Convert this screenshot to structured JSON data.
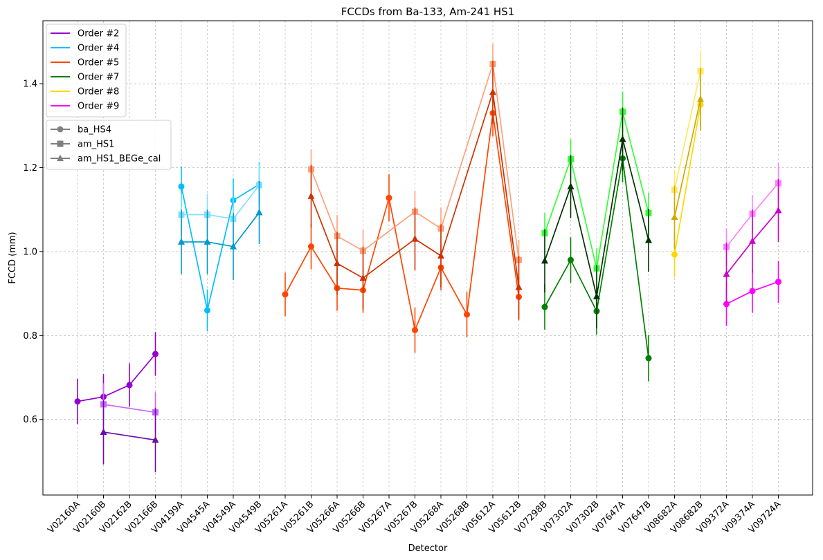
{
  "chart_data": {
    "type": "line",
    "title": "FCCDs from Ba-133, Am-241 HS1",
    "xlabel": "Detector",
    "ylabel": "FCCD (mm)",
    "ylim": [
      0.42,
      1.55
    ],
    "yticks": [
      0.6,
      0.8,
      1.0,
      1.2,
      1.4
    ],
    "ytick_labels": [
      "0.6",
      "0.8",
      "1.0",
      "1.2",
      "1.4"
    ],
    "grid": true,
    "categories": [
      "V02160A",
      "V02160B",
      "V02162B",
      "V02166B",
      "V04199A",
      "V04545A",
      "V04549A",
      "V04549B",
      "V05261A",
      "V05261B",
      "V05266A",
      "V05266B",
      "V05267A",
      "V05267B",
      "V05268A",
      "V05268B",
      "V05612A",
      "V05612B",
      "V07298B",
      "V07302A",
      "V07302B",
      "V07647A",
      "V07647B",
      "V08682A",
      "V08682B",
      "V09372A",
      "V09374A",
      "V09724A"
    ],
    "legend_orders": {
      "placement": "upper-left",
      "entries": [
        {
          "label": "Order #2",
          "color": "#9400d3"
        },
        {
          "label": "Order #4",
          "color": "#00bfff"
        },
        {
          "label": "Order #5",
          "color": "#ff4500"
        },
        {
          "label": "Order #7",
          "color": "#008000"
        },
        {
          "label": "Order #8",
          "color": "#ffd700"
        },
        {
          "label": "Order #9",
          "color": "#ff00ff"
        }
      ]
    },
    "legend_methods": {
      "placement": "upper-left",
      "entries": [
        {
          "label": "ba_HS4",
          "marker": "circle",
          "color": "#808080"
        },
        {
          "label": "am_HS1",
          "marker": "square",
          "color": "#808080"
        },
        {
          "label": "am_HS1_BEGe_cal",
          "marker": "triangle",
          "color": "#808080"
        }
      ]
    },
    "series": [
      {
        "order": "Order #2",
        "method": "ba_HS4",
        "marker": "circle",
        "color": "#9400d3",
        "points": [
          {
            "x": "V02160A",
            "y": 0.643,
            "err": 0.054
          },
          {
            "x": "V02160B",
            "y": 0.654,
            "err": 0.054
          },
          {
            "x": "V02162B",
            "y": 0.682,
            "err": 0.052
          },
          {
            "x": "V02166B",
            "y": 0.756,
            "err": 0.052
          }
        ]
      },
      {
        "order": "Order #2",
        "method": "am_HS1",
        "marker": "square",
        "color": "#cc66ff",
        "points": [
          {
            "x": "V02160B",
            "y": 0.636,
            "err": 0.05
          },
          {
            "x": "V02166B",
            "y": 0.617,
            "err": 0.048
          }
        ]
      },
      {
        "order": "Order #2",
        "method": "am_HS1_BEGe_cal",
        "marker": "triangle",
        "color": "#6a0dad",
        "points": [
          {
            "x": "V02160B",
            "y": 0.57,
            "err": 0.077
          },
          {
            "x": "V02166B",
            "y": 0.551,
            "err": 0.077
          }
        ]
      },
      {
        "order": "Order #4",
        "method": "ba_HS4",
        "marker": "circle",
        "color": "#00bfff",
        "points": [
          {
            "x": "V04199A",
            "y": 1.155,
            "err": 0.048
          },
          {
            "x": "V04545A",
            "y": 0.86,
            "err": 0.05
          },
          {
            "x": "V04549A",
            "y": 1.122,
            "err": 0.052
          },
          {
            "x": "V04549B",
            "y": 1.16,
            "err": 0.052
          }
        ]
      },
      {
        "order": "Order #4",
        "method": "am_HS1",
        "marker": "square",
        "color": "#80dfff",
        "points": [
          {
            "x": "V04199A",
            "y": 1.088,
            "err": 0.05
          },
          {
            "x": "V04545A",
            "y": 1.088,
            "err": 0.05
          },
          {
            "x": "V04549A",
            "y": 1.078,
            "err": 0.05
          },
          {
            "x": "V04549B",
            "y": 1.158,
            "err": 0.05
          }
        ]
      },
      {
        "order": "Order #4",
        "method": "am_HS1_BEGe_cal",
        "marker": "triangle",
        "color": "#0099cc",
        "points": [
          {
            "x": "V04199A",
            "y": 1.023,
            "err": 0.077
          },
          {
            "x": "V04545A",
            "y": 1.023,
            "err": 0.077
          },
          {
            "x": "V04549A",
            "y": 1.012,
            "err": 0.08
          },
          {
            "x": "V04549B",
            "y": 1.093,
            "err": 0.075
          }
        ]
      },
      {
        "order": "Order #5",
        "method": "ba_HS4",
        "marker": "circle",
        "color": "#ff4500",
        "points": [
          {
            "x": "V05261A",
            "y": 0.898,
            "err": 0.052
          },
          {
            "x": "V05261B",
            "y": 1.012,
            "err": 0.054
          },
          {
            "x": "V05266A",
            "y": 0.913,
            "err": 0.054
          },
          {
            "x": "V05266B",
            "y": 0.908,
            "err": 0.054
          },
          {
            "x": "V05267A",
            "y": 1.128,
            "err": 0.056
          },
          {
            "x": "V05267B",
            "y": 0.813,
            "err": 0.054
          },
          {
            "x": "V05268A",
            "y": 0.962,
            "err": 0.054
          },
          {
            "x": "V05268B",
            "y": 0.85,
            "err": 0.054
          },
          {
            "x": "V05612A",
            "y": 1.33,
            "err": 0.056
          },
          {
            "x": "V05612B",
            "y": 0.892,
            "err": 0.056
          }
        ]
      },
      {
        "order": "Order #5",
        "method": "am_HS1",
        "marker": "square",
        "color": "#ffa07a",
        "points": [
          {
            "x": "V05261B",
            "y": 1.196,
            "err": 0.048
          },
          {
            "x": "V05266A",
            "y": 1.037,
            "err": 0.05
          },
          {
            "x": "V05266B",
            "y": 1.002,
            "err": 0.05
          },
          {
            "x": "V05267B",
            "y": 1.095,
            "err": 0.05
          },
          {
            "x": "V05268A",
            "y": 1.055,
            "err": 0.05
          },
          {
            "x": "V05612A",
            "y": 1.447,
            "err": 0.048
          },
          {
            "x": "V05612B",
            "y": 0.98,
            "err": 0.048
          }
        ]
      },
      {
        "order": "Order #5",
        "method": "am_HS1_BEGe_cal",
        "marker": "triangle",
        "color": "#cc3300",
        "points": [
          {
            "x": "V05261B",
            "y": 1.132,
            "err": 0.075
          },
          {
            "x": "V05266A",
            "y": 0.972,
            "err": 0.075
          },
          {
            "x": "V05266B",
            "y": 0.937,
            "err": 0.075
          },
          {
            "x": "V05267B",
            "y": 1.03,
            "err": 0.075
          },
          {
            "x": "V05268A",
            "y": 0.99,
            "err": 0.075
          },
          {
            "x": "V05612A",
            "y": 1.38,
            "err": 0.075
          },
          {
            "x": "V05612B",
            "y": 0.915,
            "err": 0.075
          }
        ]
      },
      {
        "order": "Order #7",
        "method": "ba_HS4",
        "marker": "circle",
        "color": "#008000",
        "points": [
          {
            "x": "V07298B",
            "y": 0.868,
            "err": 0.054
          },
          {
            "x": "V07302A",
            "y": 0.98,
            "err": 0.054
          },
          {
            "x": "V07302B",
            "y": 0.858,
            "err": 0.056
          },
          {
            "x": "V07647A",
            "y": 1.222,
            "err": 0.056
          },
          {
            "x": "V07647B",
            "y": 0.746,
            "err": 0.055
          }
        ]
      },
      {
        "order": "Order #7",
        "method": "am_HS1",
        "marker": "square",
        "color": "#33ff33",
        "points": [
          {
            "x": "V07298B",
            "y": 1.044,
            "err": 0.048
          },
          {
            "x": "V07302A",
            "y": 1.22,
            "err": 0.048
          },
          {
            "x": "V07302B",
            "y": 0.96,
            "err": 0.048
          },
          {
            "x": "V07647A",
            "y": 1.333,
            "err": 0.048
          },
          {
            "x": "V07647B",
            "y": 1.092,
            "err": 0.048
          }
        ]
      },
      {
        "order": "Order #7",
        "method": "am_HS1_BEGe_cal",
        "marker": "triangle",
        "color": "#003300",
        "points": [
          {
            "x": "V07298B",
            "y": 0.978,
            "err": 0.075
          },
          {
            "x": "V07302A",
            "y": 1.155,
            "err": 0.075
          },
          {
            "x": "V07302B",
            "y": 0.893,
            "err": 0.075
          },
          {
            "x": "V07647A",
            "y": 1.268,
            "err": 0.075
          },
          {
            "x": "V07647B",
            "y": 1.027,
            "err": 0.075
          }
        ]
      },
      {
        "order": "Order #8",
        "method": "ba_HS4",
        "marker": "circle",
        "color": "#ffd700",
        "points": [
          {
            "x": "V08682A",
            "y": 0.993,
            "err": 0.054
          },
          {
            "x": "V08682B",
            "y": 1.35,
            "err": 0.054
          }
        ]
      },
      {
        "order": "Order #8",
        "method": "am_HS1",
        "marker": "square",
        "color": "#ffe866",
        "points": [
          {
            "x": "V08682A",
            "y": 1.147,
            "err": 0.048
          },
          {
            "x": "V08682B",
            "y": 1.43,
            "err": 0.048
          }
        ]
      },
      {
        "order": "Order #8",
        "method": "am_HS1_BEGe_cal",
        "marker": "triangle",
        "color": "#ccaa00",
        "points": [
          {
            "x": "V08682A",
            "y": 1.082,
            "err": 0.075
          },
          {
            "x": "V08682B",
            "y": 1.363,
            "err": 0.075
          }
        ]
      },
      {
        "order": "Order #9",
        "method": "ba_HS4",
        "marker": "circle",
        "color": "#ff00ff",
        "points": [
          {
            "x": "V09372A",
            "y": 0.875,
            "err": 0.052
          },
          {
            "x": "V09374A",
            "y": 0.906,
            "err": 0.052
          },
          {
            "x": "V09724A",
            "y": 0.928,
            "err": 0.05
          }
        ]
      },
      {
        "order": "Order #9",
        "method": "am_HS1",
        "marker": "square",
        "color": "#ff80ff",
        "points": [
          {
            "x": "V09372A",
            "y": 1.011,
            "err": 0.045
          },
          {
            "x": "V09374A",
            "y": 1.09,
            "err": 0.045
          },
          {
            "x": "V09724A",
            "y": 1.163,
            "err": 0.048
          }
        ]
      },
      {
        "order": "Order #9",
        "method": "am_HS1_BEGe_cal",
        "marker": "triangle",
        "color": "#cc00cc",
        "points": [
          {
            "x": "V09372A",
            "y": 0.946,
            "err": 0.075
          },
          {
            "x": "V09374A",
            "y": 1.025,
            "err": 0.075
          },
          {
            "x": "V09724A",
            "y": 1.098,
            "err": 0.075
          }
        ]
      }
    ]
  }
}
